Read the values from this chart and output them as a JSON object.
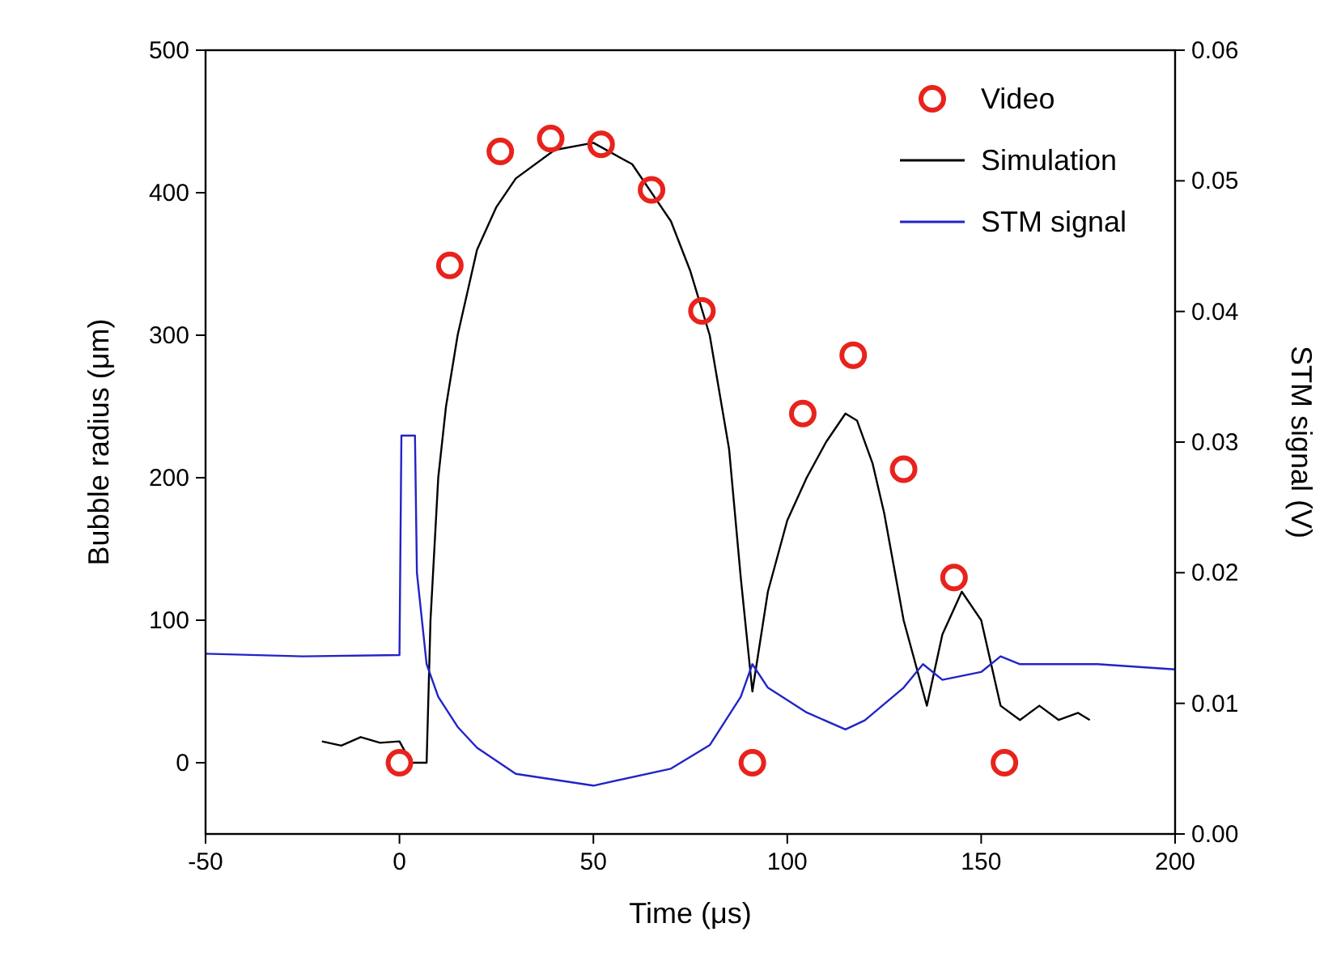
{
  "chart_data": {
    "type": "line",
    "xlabel": "Time (μs)",
    "ylabel": "Bubble radius (μm)",
    "y2label": "STM signal (V)",
    "xlim": [
      -50,
      200
    ],
    "xticks": [
      -50,
      0,
      50,
      100,
      150,
      200
    ],
    "ylim": [
      -50,
      500
    ],
    "yticks": [
      0,
      100,
      200,
      300,
      400,
      500
    ],
    "y2lim": [
      0,
      0.06
    ],
    "y2ticks": [
      {
        "value": 0,
        "label": "0.00"
      },
      {
        "value": 0.01,
        "label": "0.01"
      },
      {
        "value": 0.02,
        "label": "0.02"
      },
      {
        "value": 0.03,
        "label": "0.03"
      },
      {
        "value": 0.04,
        "label": "0.04"
      },
      {
        "value": 0.05,
        "label": "0.05"
      },
      {
        "value": 0.06,
        "label": "0.06"
      }
    ],
    "grid": false,
    "legend": "top right",
    "series": [
      {
        "name": "Video",
        "type": "scatter",
        "marker": "circle",
        "color": "#e8231c",
        "x": [
          0,
          13,
          26,
          39,
          52,
          65,
          78,
          91,
          104,
          117,
          130,
          143,
          156
        ],
        "values": [
          0,
          349,
          429,
          438,
          434,
          402,
          317,
          0,
          245,
          286,
          206,
          130,
          0
        ]
      },
      {
        "name": "Simulation",
        "color": "#000000",
        "x": [
          -20,
          -15,
          -10,
          -5,
          0,
          3,
          7,
          8,
          10,
          12,
          15,
          20,
          25,
          30,
          40,
          50,
          60,
          70,
          75,
          80,
          85,
          88,
          91,
          95,
          100,
          105,
          110,
          115,
          118,
          122,
          125,
          130,
          135,
          136,
          140,
          145,
          150,
          155,
          160,
          165,
          170,
          175,
          178
        ],
        "values": [
          15,
          12,
          18,
          14,
          15,
          0,
          0,
          100,
          200,
          250,
          300,
          360,
          390,
          410,
          430,
          435,
          420,
          380,
          345,
          300,
          220,
          130,
          50,
          120,
          170,
          200,
          225,
          245,
          240,
          210,
          175,
          100,
          50,
          40,
          90,
          120,
          100,
          40,
          30,
          40,
          30,
          35,
          30
        ]
      },
      {
        "name": "STM signal",
        "axis": "y2",
        "color": "#2323c8",
        "x": [
          -50,
          -25,
          0,
          0.5,
          4,
          4.5,
          7,
          10,
          15,
          20,
          30,
          50,
          70,
          80,
          88,
          91,
          95,
          105,
          115,
          120,
          130,
          135,
          140,
          150,
          155,
          160,
          180,
          200
        ],
        "values": [
          0.0138,
          0.0136,
          0.0137,
          0.0305,
          0.0305,
          0.02,
          0.013,
          0.0105,
          0.0082,
          0.0066,
          0.0046,
          0.0037,
          0.005,
          0.0068,
          0.0105,
          0.013,
          0.0112,
          0.0093,
          0.008,
          0.0087,
          0.0112,
          0.013,
          0.0118,
          0.0124,
          0.0136,
          0.013,
          0.013,
          0.0126
        ]
      }
    ]
  }
}
